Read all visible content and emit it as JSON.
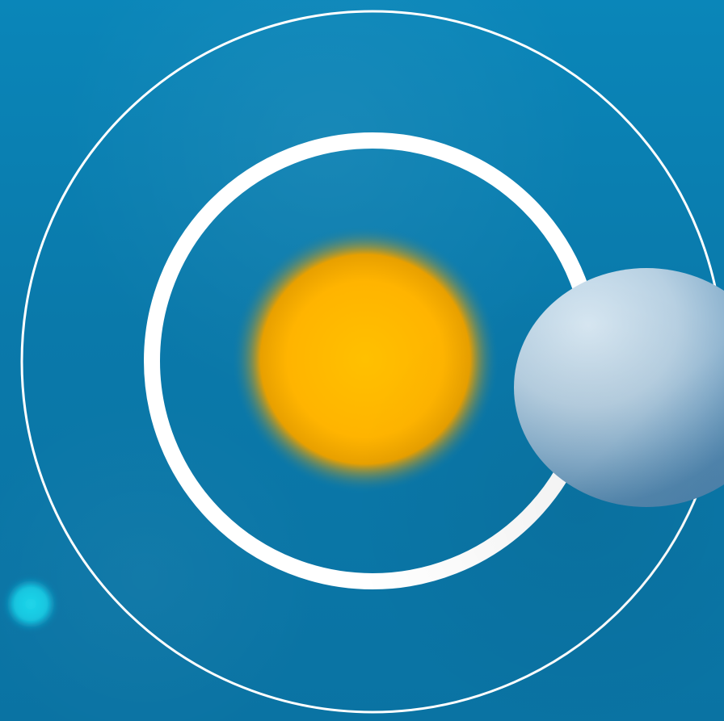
{
  "scene": {
    "background_color": "#0b7eaf",
    "sun_color": "#ffc000",
    "sun_edge_color": "#e0a100",
    "ring_color": "#ffffff",
    "planet_color": "#bfd4e4",
    "moon_color": "#15c7df"
  }
}
